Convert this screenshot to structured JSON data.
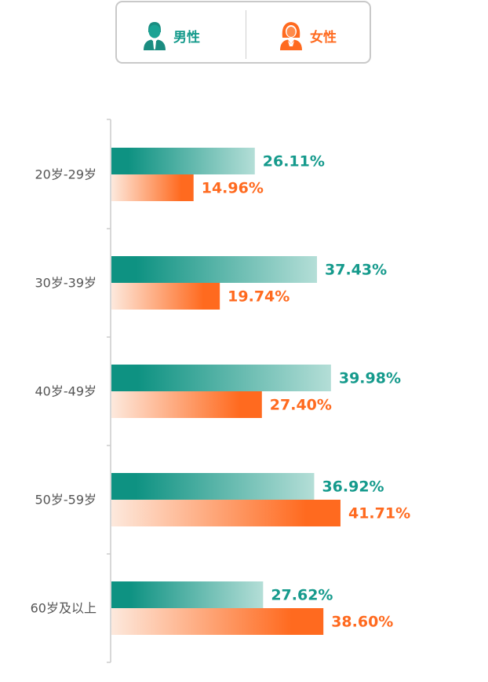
{
  "legend": {
    "male": {
      "label": "男性",
      "icon": "male-person-icon",
      "color": "#159a8c"
    },
    "female": {
      "label": "女性",
      "icon": "female-person-icon",
      "color": "#ff6a1f"
    }
  },
  "chart_data": {
    "type": "bar",
    "orientation": "horizontal",
    "categories": [
      "20岁-29岁",
      "30岁-39岁",
      "40岁-49岁",
      "50岁-59岁",
      "60岁及以上"
    ],
    "series": [
      {
        "name": "男性",
        "values": [
          26.11,
          37.43,
          39.98,
          36.92,
          27.62
        ],
        "labels": [
          "26.11%",
          "37.43%",
          "39.98%",
          "36.92%",
          "27.62%"
        ],
        "color": "#159a8c"
      },
      {
        "name": "女性",
        "values": [
          14.96,
          19.74,
          27.4,
          41.71,
          38.6
        ],
        "labels": [
          "14.96%",
          "19.74%",
          "27.40%",
          "41.71%",
          "38.60%"
        ],
        "color": "#ff6a1f"
      }
    ],
    "xlim": [
      0,
      100
    ],
    "grid": false,
    "legend_position": "top"
  }
}
